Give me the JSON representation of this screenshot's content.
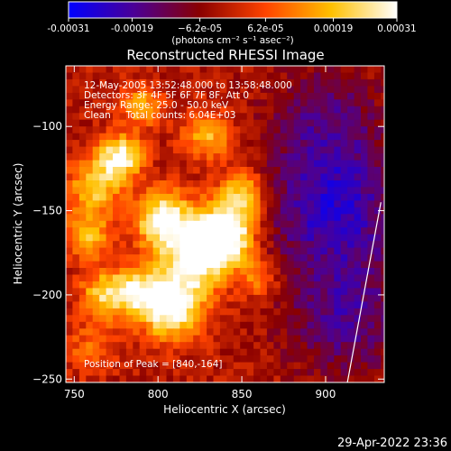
{
  "chart_data": {
    "type": "heatmap",
    "title": "Reconstructed RHESSI Image",
    "xlabel": "Heliocentric X (arcsec)",
    "ylabel": "Heliocentric Y (arcsec)",
    "xlim": [
      745,
      935
    ],
    "ylim": [
      -252,
      -64
    ],
    "x_ticks": [
      750,
      800,
      850,
      900
    ],
    "y_ticks": [
      -100,
      -150,
      -200,
      -250
    ],
    "colorbar": {
      "range": [
        -0.00031,
        0.00031
      ],
      "tick_labels": [
        "-0.00031",
        "-0.00019",
        "−6.2e-05",
        "6.2e-05",
        "0.00019",
        "0.00031"
      ],
      "tick_values": [
        -0.00031,
        -0.00019,
        -6.2e-05,
        6.2e-05,
        0.00019,
        0.00031
      ],
      "unit": "(photons cm⁻² s⁻¹ asec⁻²)",
      "stops": [
        "#0000ff",
        "#4b0096",
        "#8a0000",
        "#ff4400",
        "#ffc000",
        "#ffffff"
      ]
    },
    "annotations": [
      "12-May-2005 13:52:48.000 to 13:58:48.000",
      "Detectors: 3F 4F 5F 6F 7F 8F, Att 0",
      "Energy Range: 25.0 - 50.0 keV",
      "Clean     Total counts: 6.04E+03"
    ],
    "peak_label": "Position of Peak = [840,-164]",
    "peak": [
      840,
      -164
    ],
    "grid": false,
    "cell_size_arcsec": 4,
    "sources": [
      {
        "x": 778,
        "y": -118,
        "s": 9,
        "a": 0.0022
      },
      {
        "x": 762,
        "y": -135,
        "s": 11,
        "a": 0.0016
      },
      {
        "x": 803,
        "y": -155,
        "s": 12,
        "a": 0.0022
      },
      {
        "x": 840,
        "y": -164,
        "s": 12,
        "a": 0.0028
      },
      {
        "x": 822,
        "y": -178,
        "s": 14,
        "a": 0.0022
      },
      {
        "x": 808,
        "y": -208,
        "s": 13,
        "a": 0.0024
      },
      {
        "x": 788,
        "y": -198,
        "s": 10,
        "a": 0.0016
      },
      {
        "x": 768,
        "y": -200,
        "s": 10,
        "a": 0.0016
      },
      {
        "x": 830,
        "y": -105,
        "s": 10,
        "a": 0.0014
      },
      {
        "x": 850,
        "y": -140,
        "s": 10,
        "a": 0.0016
      },
      {
        "x": 758,
        "y": -165,
        "s": 10,
        "a": 0.0014
      },
      {
        "x": 790,
        "y": -88,
        "s": 9,
        "a": 0.0012
      },
      {
        "x": 860,
        "y": -190,
        "s": 8,
        "a": 0.001
      },
      {
        "x": 760,
        "y": -232,
        "s": 10,
        "a": 0.0008
      },
      {
        "x": 905,
        "y": -150,
        "s": 28,
        "a": -0.0014
      },
      {
        "x": 912,
        "y": -215,
        "s": 24,
        "a": -0.001
      },
      {
        "x": 900,
        "y": -95,
        "s": 24,
        "a": -0.0008
      }
    ],
    "limb_line": [
      [
        913,
        -252
      ],
      [
        933,
        -145
      ]
    ]
  },
  "footer": {
    "timestamp": "29-Apr-2022 23:36"
  }
}
